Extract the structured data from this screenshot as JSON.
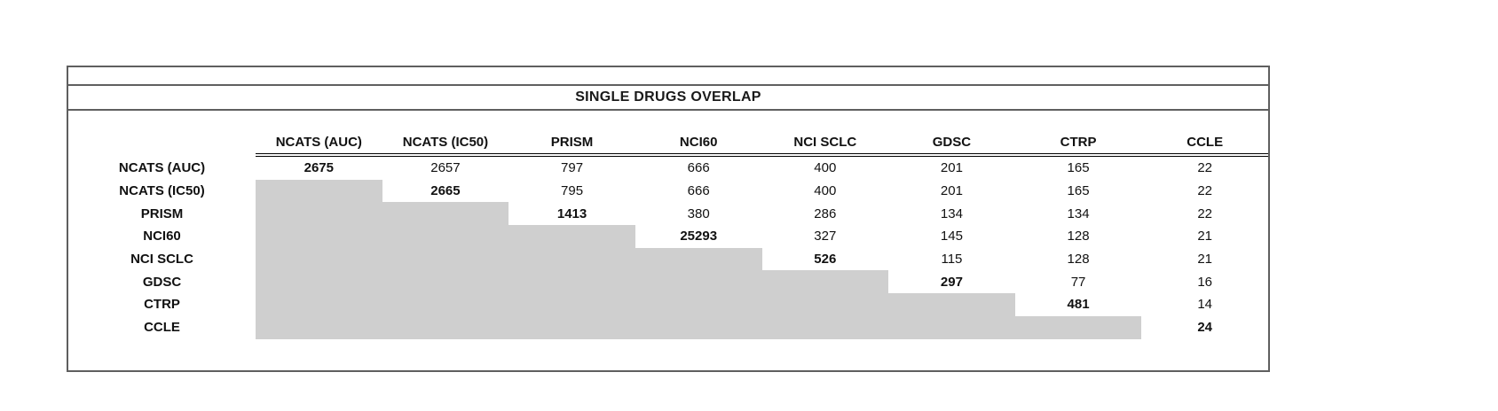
{
  "table": {
    "title": "SINGLE DRUGS OVERLAP",
    "columns": [
      "NCATS (AUC)",
      "NCATS (IC50)",
      "PRISM",
      "NCI60",
      "NCI SCLC",
      "GDSC",
      "CTRP",
      "CCLE"
    ],
    "rows": [
      {
        "label": "NCATS (AUC)",
        "cells": [
          "2675",
          "2657",
          "797",
          "666",
          "400",
          "201",
          "165",
          "22"
        ]
      },
      {
        "label": "NCATS (IC50)",
        "cells": [
          null,
          "2665",
          "795",
          "666",
          "400",
          "201",
          "165",
          "22"
        ]
      },
      {
        "label": "PRISM",
        "cells": [
          null,
          null,
          "1413",
          "380",
          "286",
          "134",
          "134",
          "22"
        ]
      },
      {
        "label": "NCI60",
        "cells": [
          null,
          null,
          null,
          "25293",
          "327",
          "145",
          "128",
          "21"
        ]
      },
      {
        "label": "NCI SCLC",
        "cells": [
          null,
          null,
          null,
          null,
          "526",
          "115",
          "128",
          "21"
        ]
      },
      {
        "label": "GDSC",
        "cells": [
          null,
          null,
          null,
          null,
          null,
          "297",
          "77",
          "16"
        ]
      },
      {
        "label": "CTRP",
        "cells": [
          null,
          null,
          null,
          null,
          null,
          null,
          "481",
          "14"
        ]
      },
      {
        "label": "CCLE",
        "cells": [
          null,
          null,
          null,
          null,
          null,
          null,
          null,
          "24"
        ]
      }
    ],
    "colors": {
      "shaded_cell": "#cfcfcf",
      "rule": "#5f5f5f",
      "header_rule": "#000000",
      "text": "#111111",
      "background": "#ffffff"
    }
  },
  "chart_data": {
    "type": "table",
    "title": "SINGLE DRUGS OVERLAP",
    "columns": [
      "NCATS (AUC)",
      "NCATS (IC50)",
      "PRISM",
      "NCI60",
      "NCI SCLC",
      "GDSC",
      "CTRP",
      "CCLE"
    ],
    "row_labels": [
      "NCATS (AUC)",
      "NCATS (IC50)",
      "PRISM",
      "NCI60",
      "NCI SCLC",
      "GDSC",
      "CTRP",
      "CCLE"
    ],
    "values": [
      [
        2675,
        2657,
        797,
        666,
        400,
        201,
        165,
        22
      ],
      [
        null,
        2665,
        795,
        666,
        400,
        201,
        165,
        22
      ],
      [
        null,
        null,
        1413,
        380,
        286,
        134,
        134,
        22
      ],
      [
        null,
        null,
        null,
        25293,
        327,
        145,
        128,
        21
      ],
      [
        null,
        null,
        null,
        null,
        526,
        115,
        128,
        21
      ],
      [
        null,
        null,
        null,
        null,
        null,
        297,
        77,
        16
      ],
      [
        null,
        null,
        null,
        null,
        null,
        null,
        481,
        14
      ],
      [
        null,
        null,
        null,
        null,
        null,
        null,
        null,
        24
      ]
    ],
    "notes": "Upper-triangular pairwise overlap matrix; diagonal values bold; lower triangle shaded gray"
  }
}
